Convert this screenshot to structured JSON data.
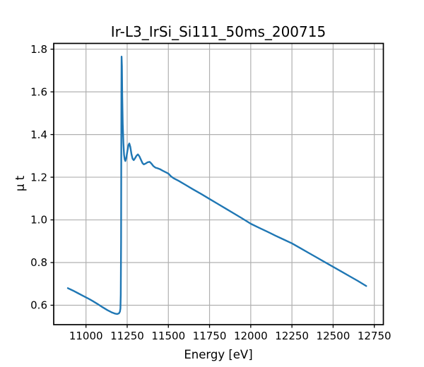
{
  "chart_data": {
    "type": "line",
    "title": "Ir-L3_IrSi_Si111_50ms_200715",
    "xlabel": "Energy [eV]",
    "ylabel": "μ t",
    "xlim": [
      10804,
      12805
    ],
    "ylim": [
      0.509,
      1.827
    ],
    "xticks": [
      11000,
      11250,
      11500,
      11750,
      12000,
      12250,
      12500,
      12750
    ],
    "yticks": [
      0.6,
      0.8,
      1.0,
      1.2,
      1.4,
      1.6,
      1.8
    ],
    "grid": true,
    "legend": "none",
    "colors": {
      "line": "#1f77b4",
      "grid": "#b0b0b0",
      "axes": "#000000",
      "background": "#ffffff"
    },
    "series": [
      {
        "name": "mu_t_spectrum",
        "points": [
          [
            10890,
            0.68
          ],
          [
            10920,
            0.669
          ],
          [
            10950,
            0.657
          ],
          [
            10980,
            0.645
          ],
          [
            11010,
            0.633
          ],
          [
            11040,
            0.62
          ],
          [
            11070,
            0.606
          ],
          [
            11100,
            0.591
          ],
          [
            11130,
            0.577
          ],
          [
            11155,
            0.567
          ],
          [
            11175,
            0.561
          ],
          [
            11190,
            0.559
          ],
          [
            11200,
            0.562
          ],
          [
            11206,
            0.57
          ],
          [
            11209,
            0.585
          ],
          [
            11211,
            0.65
          ],
          [
            11213,
            0.9
          ],
          [
            11214,
            1.25
          ],
          [
            11215,
            1.6
          ],
          [
            11216,
            1.765
          ],
          [
            11218,
            1.72
          ],
          [
            11220,
            1.58
          ],
          [
            11223,
            1.45
          ],
          [
            11227,
            1.36
          ],
          [
            11231,
            1.305
          ],
          [
            11235,
            1.283
          ],
          [
            11239,
            1.276
          ],
          [
            11245,
            1.292
          ],
          [
            11252,
            1.326
          ],
          [
            11258,
            1.351
          ],
          [
            11263,
            1.358
          ],
          [
            11269,
            1.342
          ],
          [
            11276,
            1.308
          ],
          [
            11283,
            1.286
          ],
          [
            11290,
            1.28
          ],
          [
            11297,
            1.288
          ],
          [
            11306,
            1.3
          ],
          [
            11315,
            1.307
          ],
          [
            11324,
            1.298
          ],
          [
            11334,
            1.281
          ],
          [
            11343,
            1.266
          ],
          [
            11351,
            1.26
          ],
          [
            11362,
            1.264
          ],
          [
            11374,
            1.27
          ],
          [
            11386,
            1.272
          ],
          [
            11397,
            1.264
          ],
          [
            11409,
            1.252
          ],
          [
            11421,
            1.245
          ],
          [
            11434,
            1.242
          ],
          [
            11448,
            1.238
          ],
          [
            11464,
            1.231
          ],
          [
            11482,
            1.224
          ],
          [
            11500,
            1.217
          ],
          [
            11516,
            1.204
          ],
          [
            11532,
            1.195
          ],
          [
            11560,
            1.184
          ],
          [
            11600,
            1.166
          ],
          [
            11650,
            1.143
          ],
          [
            11700,
            1.121
          ],
          [
            11750,
            1.098
          ],
          [
            11800,
            1.075
          ],
          [
            11850,
            1.052
          ],
          [
            11900,
            1.029
          ],
          [
            11950,
            1.006
          ],
          [
            12000,
            0.982
          ],
          [
            12050,
            0.963
          ],
          [
            12100,
            0.945
          ],
          [
            12150,
            0.926
          ],
          [
            12200,
            0.908
          ],
          [
            12250,
            0.89
          ],
          [
            12300,
            0.868
          ],
          [
            12350,
            0.846
          ],
          [
            12400,
            0.824
          ],
          [
            12450,
            0.802
          ],
          [
            12500,
            0.78
          ],
          [
            12550,
            0.758
          ],
          [
            12600,
            0.736
          ],
          [
            12650,
            0.714
          ],
          [
            12701,
            0.69
          ]
        ]
      }
    ]
  }
}
